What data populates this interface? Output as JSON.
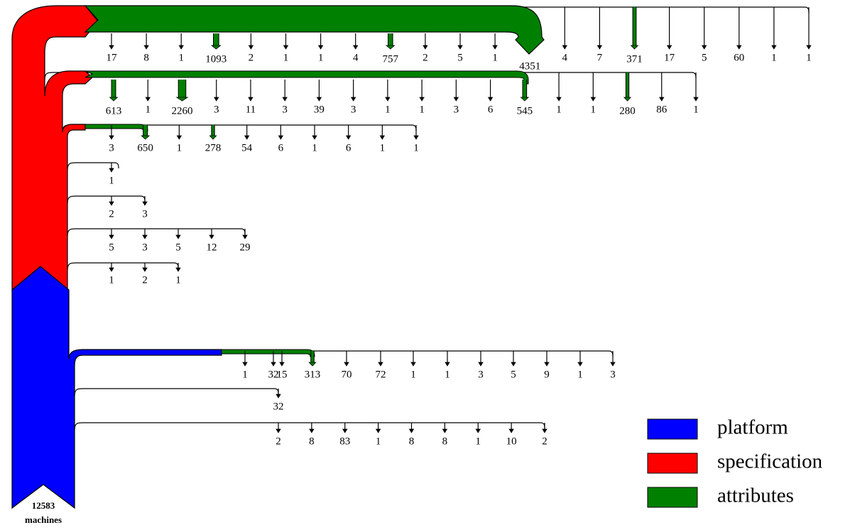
{
  "root": {
    "count": "12583",
    "label": "machines"
  },
  "legend": [
    {
      "label": "platform",
      "color": "#0000ff"
    },
    {
      "label": "specification",
      "color": "#ff0000"
    },
    {
      "label": "attributes",
      "color": "#008000"
    }
  ],
  "rows": [
    [
      17,
      8,
      1,
      1093,
      2,
      1,
      1,
      4,
      757,
      2,
      5,
      1,
      4351,
      4,
      7,
      371,
      17,
      5,
      60,
      1,
      1
    ],
    [
      613,
      1,
      2260,
      3,
      11,
      3,
      39,
      3,
      1,
      1,
      3,
      6,
      545,
      1,
      1,
      280,
      86,
      1
    ],
    [
      3,
      650,
      1,
      278,
      54,
      6,
      1,
      6,
      1,
      1
    ],
    [
      1
    ],
    [
      2,
      3
    ],
    [
      5,
      3,
      5,
      12,
      29
    ],
    [
      1,
      2,
      1
    ],
    [
      1,
      32,
      15,
      313,
      70,
      72,
      1,
      1,
      3,
      5,
      9,
      1,
      3
    ],
    [
      32
    ],
    [
      2,
      8,
      83,
      1,
      8,
      8,
      1,
      10,
      2
    ]
  ]
}
